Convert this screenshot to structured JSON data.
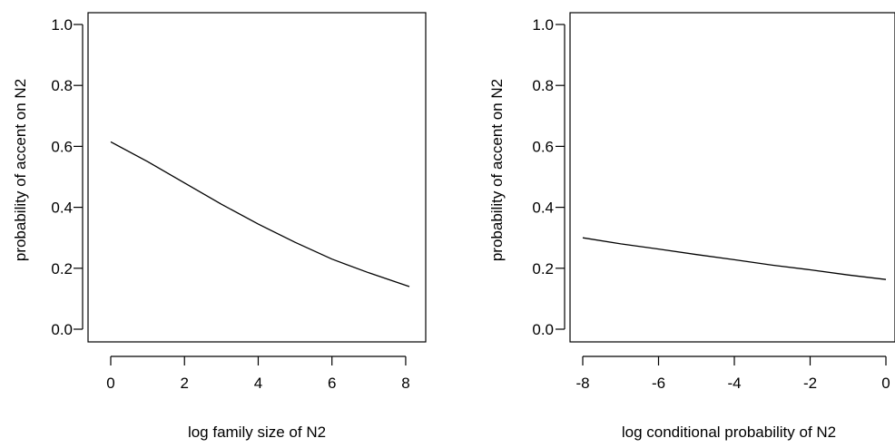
{
  "chart_data": [
    {
      "type": "line",
      "xlabel": "log family size of N2",
      "ylabel": "probability of accent on N2",
      "xlim": [
        0,
        8.1
      ],
      "ylim": [
        0,
        1.0
      ],
      "x_ticks": [
        0,
        2,
        4,
        6,
        8
      ],
      "y_ticks": [
        0.0,
        0.2,
        0.4,
        0.6,
        0.8,
        1.0
      ],
      "x_tick_labels": [
        "0",
        "2",
        "4",
        "6",
        "8"
      ],
      "y_tick_labels": [
        "0.0",
        "0.2",
        "0.4",
        "0.6",
        "0.8",
        "1.0"
      ],
      "grid": false,
      "series": [
        {
          "x": [
            0,
            1,
            2,
            3,
            4,
            5,
            6,
            7,
            8.1
          ],
          "y": [
            0.615,
            0.55,
            0.48,
            0.41,
            0.345,
            0.285,
            0.23,
            0.185,
            0.14
          ]
        }
      ]
    },
    {
      "type": "line",
      "xlabel": "log conditional probability of N2",
      "ylabel": "probability of accent on N2",
      "xlim": [
        -8,
        0
      ],
      "ylim": [
        0,
        1.0
      ],
      "x_ticks": [
        -8,
        -6,
        -4,
        -2,
        0
      ],
      "y_ticks": [
        0.0,
        0.2,
        0.4,
        0.6,
        0.8,
        1.0
      ],
      "x_tick_labels": [
        "-8",
        "-6",
        "-4",
        "-2",
        "0"
      ],
      "y_tick_labels": [
        "0.0",
        "0.2",
        "0.4",
        "0.6",
        "0.8",
        "1.0"
      ],
      "grid": false,
      "series": [
        {
          "x": [
            -8,
            -7,
            -6,
            -5,
            -4,
            -3,
            -2,
            -1,
            0
          ],
          "y": [
            0.3,
            0.28,
            0.263,
            0.245,
            0.228,
            0.21,
            0.195,
            0.178,
            0.163
          ]
        }
      ]
    }
  ]
}
